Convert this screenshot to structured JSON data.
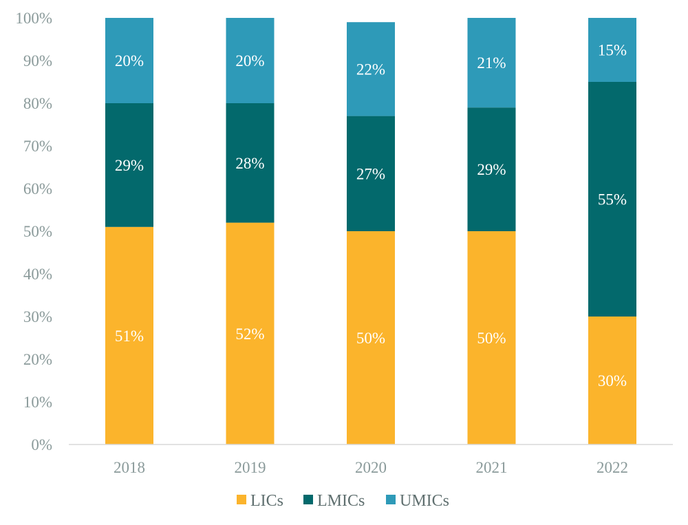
{
  "chart_data": {
    "type": "bar",
    "stacked": true,
    "categories": [
      "2018",
      "2019",
      "2020",
      "2021",
      "2022"
    ],
    "series": [
      {
        "name": "LICs",
        "color": "#FBB42C",
        "values": [
          51,
          52,
          50,
          50,
          30
        ],
        "labels": [
          "51%",
          "52%",
          "50%",
          "50%",
          "30%"
        ]
      },
      {
        "name": "LMICs",
        "color": "#03696C",
        "values": [
          29,
          28,
          27,
          29,
          55
        ],
        "labels": [
          "29%",
          "28%",
          "27%",
          "29%",
          "55%"
        ]
      },
      {
        "name": "UMICs",
        "color": "#2E9AB8",
        "values": [
          20,
          20,
          22,
          21,
          15
        ],
        "labels": [
          "20%",
          "20%",
          "22%",
          "21%",
          "15%"
        ]
      }
    ],
    "ylim": [
      0,
      100
    ],
    "yticks": [
      "0%",
      "10%",
      "20%",
      "30%",
      "40%",
      "50%",
      "60%",
      "70%",
      "80%",
      "90%",
      "100%"
    ],
    "grid": false,
    "legend_position": "bottom",
    "title": "",
    "xlabel": "",
    "ylabel": ""
  }
}
